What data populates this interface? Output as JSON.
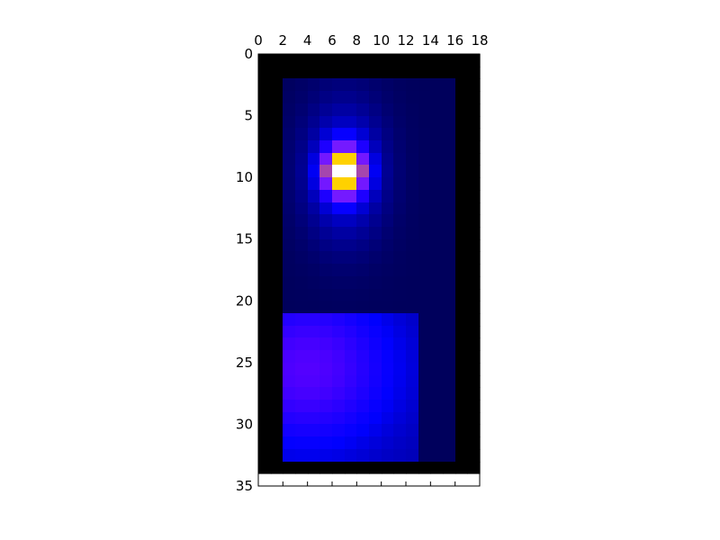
{
  "chart_data": {
    "type": "heatmap",
    "title": "",
    "xlabel": "",
    "ylabel": "",
    "xlim": [
      0,
      18
    ],
    "ylim": [
      35,
      0
    ],
    "x_ticks": [
      0,
      2,
      4,
      6,
      8,
      10,
      12,
      14,
      16,
      18
    ],
    "y_ticks": [
      0,
      5,
      10,
      15,
      20,
      25,
      30,
      35
    ],
    "x_tick_position": "top",
    "y_tick_position": "left",
    "image_extent_cols": 18,
    "image_extent_rows": 34,
    "background_color": "#000000",
    "colormap": "gnuplot2",
    "data_region": {
      "col_start": 2,
      "col_end": 16,
      "row_start": 2,
      "row_end": 33
    },
    "hotspot": {
      "col": 7,
      "row": 9.5,
      "peak": 1.0,
      "box": {
        "col_start": 6,
        "col_end": 8,
        "row_start": 9,
        "row_end": 11
      },
      "box_color": "#000000"
    },
    "lower_region": {
      "row_start": 21,
      "row_end": 33,
      "col_start": 2,
      "col_end": 13,
      "center_col": 4,
      "center_row": 25.5,
      "level": 0.34
    }
  }
}
